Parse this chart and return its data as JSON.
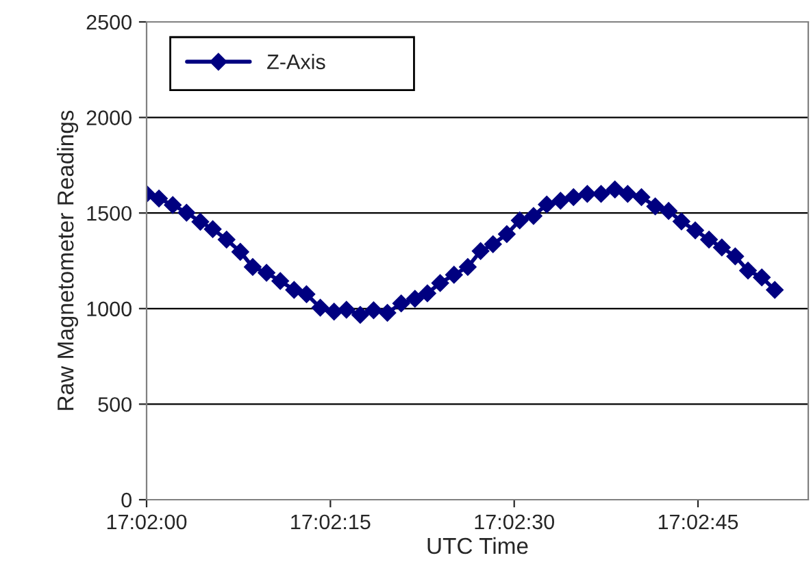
{
  "chart_data": {
    "type": "line",
    "xlabel": "UTC Time",
    "ylabel": "Raw Magnetometer Readings",
    "x": [
      17.033333,
      17.033614,
      17.033927,
      17.034239,
      17.034552,
      17.034833,
      17.035146,
      17.035458,
      17.035739,
      17.036052,
      17.036364,
      17.036677,
      17.036958,
      17.037271,
      17.037583,
      17.037864,
      17.038177,
      17.03848,
      17.038792,
      17.039105,
      17.039417,
      17.039699,
      17.039989,
      17.040302,
      17.040614,
      17.040905,
      17.041186,
      17.041499,
      17.041792,
      17.042105,
      17.042405,
      17.042717,
      17.043011,
      17.043324,
      17.043636,
      17.043949,
      17.044239,
      17.044552,
      17.044864,
      17.045167,
      17.045458,
      17.045771,
      17.046083,
      17.046374,
      17.046677,
      17.046967,
      17.04728,
      17.047574
    ],
    "series": [
      {
        "name": "Z-Axis",
        "color": "#000080",
        "values": [
          1600,
          1576,
          1542,
          1502,
          1454,
          1416,
          1361,
          1297,
          1218,
          1187,
          1144,
          1098,
          1075,
          1005,
          984,
          994,
          967,
          991,
          978,
          1027,
          1051,
          1080,
          1134,
          1177,
          1218,
          1301,
          1337,
          1390,
          1461,
          1485,
          1545,
          1564,
          1583,
          1600,
          1600,
          1623,
          1600,
          1583,
          1535,
          1511,
          1456,
          1409,
          1361,
          1320,
          1273,
          1199,
          1163,
          1098
        ]
      }
    ],
    "xlim": [
      17.033333,
      17.048333
    ],
    "xticks": [
      {
        "value": 17.033333,
        "label": "17:02:00"
      },
      {
        "value": 17.0375,
        "label": "17:02:15"
      },
      {
        "value": 17.041667,
        "label": "17:02:30"
      },
      {
        "value": 17.045833,
        "label": "17:02:45"
      }
    ],
    "ylim": [
      0,
      2500
    ],
    "yticks": [
      0,
      500,
      1000,
      1500,
      2000,
      2500
    ],
    "grid": "y",
    "legend": "top left",
    "marker": "diamond",
    "line_style": "solid"
  }
}
